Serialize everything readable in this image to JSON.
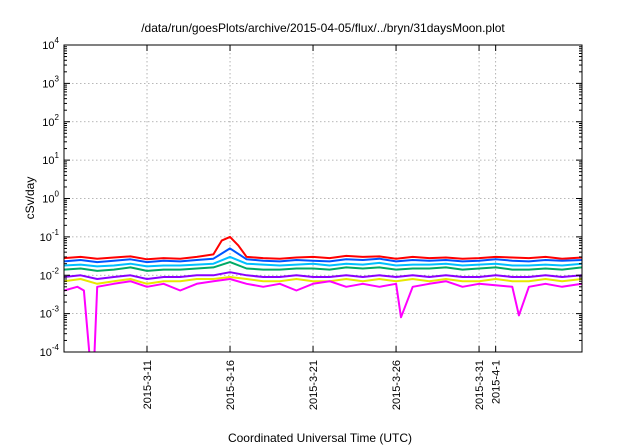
{
  "chart_data": {
    "type": "line",
    "title": "/data/run/goesPlots/archive/2015-04-05/flux/../bryn/31daysMoon.plot",
    "xlabel": "Coordinated Universal Time (UTC)",
    "ylabel": "cSv/day",
    "yscale": "log",
    "ylim": [
      0.0001,
      10000
    ],
    "xlim_days": [
      0,
      31.2
    ],
    "y_ticks": [
      {
        "value": 0.0001,
        "base": "10",
        "exp": "-4"
      },
      {
        "value": 0.001,
        "base": "10",
        "exp": "-3"
      },
      {
        "value": 0.01,
        "base": "10",
        "exp": "-2"
      },
      {
        "value": 0.1,
        "base": "10",
        "exp": "-1"
      },
      {
        "value": 1,
        "base": "10",
        "exp": "0"
      },
      {
        "value": 10,
        "base": "10",
        "exp": "1"
      },
      {
        "value": 100,
        "base": "10",
        "exp": "2"
      },
      {
        "value": 1000,
        "base": "10",
        "exp": "3"
      },
      {
        "value": 10000,
        "base": "10",
        "exp": "4"
      }
    ],
    "x_ticks": [
      {
        "day": 5.0,
        "label": "2015-3-11"
      },
      {
        "day": 10.0,
        "label": "2015-3-16"
      },
      {
        "day": 15.0,
        "label": "2015-3-21"
      },
      {
        "day": 20.0,
        "label": "2015-3-26"
      },
      {
        "day": 25.0,
        "label": "2015-3-31"
      },
      {
        "day": 26.0,
        "label": "2015-4-1"
      }
    ],
    "series": [
      {
        "name": "red",
        "color": "#ff0000",
        "x": [
          0,
          1,
          2,
          3,
          4,
          5,
          6,
          7,
          8,
          9,
          9.5,
          10,
          10.5,
          11,
          12,
          13,
          14,
          15,
          16,
          17,
          18,
          19,
          20,
          21,
          22,
          23,
          24,
          25,
          26,
          27,
          28,
          29,
          30,
          31.2
        ],
        "y": [
          0.028,
          0.03,
          0.027,
          0.029,
          0.031,
          0.026,
          0.028,
          0.027,
          0.03,
          0.035,
          0.08,
          0.1,
          0.06,
          0.03,
          0.028,
          0.027,
          0.029,
          0.03,
          0.028,
          0.032,
          0.03,
          0.031,
          0.027,
          0.03,
          0.028,
          0.029,
          0.027,
          0.028,
          0.03,
          0.029,
          0.028,
          0.03,
          0.027,
          0.029
        ]
      },
      {
        "name": "blue",
        "color": "#0055ff",
        "x": [
          0,
          1,
          2,
          3,
          4,
          5,
          6,
          7,
          8,
          9,
          10,
          11,
          12,
          13,
          14,
          15,
          16,
          17,
          18,
          19,
          20,
          21,
          22,
          23,
          24,
          25,
          26,
          27,
          28,
          29,
          30,
          31.2
        ],
        "y": [
          0.023,
          0.025,
          0.022,
          0.024,
          0.026,
          0.022,
          0.024,
          0.023,
          0.025,
          0.027,
          0.05,
          0.026,
          0.024,
          0.023,
          0.025,
          0.024,
          0.023,
          0.026,
          0.025,
          0.027,
          0.023,
          0.025,
          0.024,
          0.025,
          0.023,
          0.024,
          0.026,
          0.024,
          0.023,
          0.025,
          0.024,
          0.025
        ]
      },
      {
        "name": "cyan",
        "color": "#00bfff",
        "x": [
          0,
          1,
          2,
          3,
          4,
          5,
          6,
          7,
          8,
          9,
          10,
          11,
          12,
          13,
          14,
          15,
          16,
          17,
          18,
          19,
          20,
          21,
          22,
          23,
          24,
          25,
          26,
          27,
          28,
          29,
          30,
          31.2
        ],
        "y": [
          0.018,
          0.019,
          0.017,
          0.018,
          0.02,
          0.017,
          0.018,
          0.018,
          0.019,
          0.02,
          0.03,
          0.02,
          0.019,
          0.018,
          0.019,
          0.02,
          0.018,
          0.02,
          0.019,
          0.021,
          0.018,
          0.019,
          0.019,
          0.02,
          0.018,
          0.019,
          0.02,
          0.018,
          0.018,
          0.019,
          0.018,
          0.02
        ]
      },
      {
        "name": "green",
        "color": "#00aa66",
        "x": [
          0,
          1,
          2,
          3,
          4,
          5,
          6,
          7,
          8,
          9,
          10,
          11,
          12,
          13,
          14,
          15,
          16,
          17,
          18,
          19,
          20,
          21,
          22,
          23,
          24,
          25,
          26,
          27,
          28,
          29,
          30,
          31.2
        ],
        "y": [
          0.014,
          0.015,
          0.013,
          0.014,
          0.016,
          0.013,
          0.014,
          0.014,
          0.015,
          0.016,
          0.022,
          0.015,
          0.014,
          0.014,
          0.015,
          0.015,
          0.014,
          0.016,
          0.015,
          0.016,
          0.014,
          0.015,
          0.015,
          0.016,
          0.014,
          0.015,
          0.016,
          0.014,
          0.014,
          0.015,
          0.014,
          0.016
        ]
      },
      {
        "name": "purple",
        "color": "#8b00ff",
        "x": [
          0,
          1,
          2,
          3,
          4,
          5,
          6,
          7,
          8,
          9,
          10,
          11,
          12,
          13,
          14,
          15,
          16,
          17,
          18,
          19,
          20,
          21,
          22,
          23,
          24,
          25,
          26,
          27,
          28,
          29,
          30,
          31.2
        ],
        "y": [
          0.009,
          0.01,
          0.008,
          0.009,
          0.01,
          0.008,
          0.009,
          0.009,
          0.01,
          0.01,
          0.012,
          0.01,
          0.009,
          0.009,
          0.01,
          0.009,
          0.009,
          0.01,
          0.009,
          0.01,
          0.009,
          0.01,
          0.009,
          0.01,
          0.009,
          0.009,
          0.01,
          0.009,
          0.009,
          0.01,
          0.009,
          0.01
        ]
      },
      {
        "name": "yellow",
        "color": "#e8e800",
        "x": [
          0,
          1,
          2,
          3,
          4,
          5,
          6,
          7,
          8,
          9,
          10,
          11,
          12,
          13,
          14,
          15,
          16,
          17,
          18,
          19,
          20,
          21,
          22,
          23,
          24,
          25,
          26,
          27,
          28,
          29,
          30,
          31.2
        ],
        "y": [
          0.007,
          0.008,
          0.006,
          0.007,
          0.008,
          0.006,
          0.007,
          0.007,
          0.008,
          0.008,
          0.009,
          0.008,
          0.007,
          0.007,
          0.008,
          0.007,
          0.007,
          0.008,
          0.007,
          0.008,
          0.007,
          0.008,
          0.007,
          0.008,
          0.007,
          0.007,
          0.008,
          0.007,
          0.007,
          0.008,
          0.007,
          0.008
        ]
      },
      {
        "name": "magenta",
        "color": "#ff00ff",
        "x": [
          0,
          0.8,
          1.2,
          1.6,
          1.8,
          2,
          3,
          4,
          5,
          6,
          7,
          8,
          9,
          10,
          11,
          12,
          13,
          14,
          15,
          16,
          17,
          18,
          19,
          20,
          20.3,
          21,
          22,
          23,
          24,
          25,
          27,
          27.4,
          28,
          29,
          30,
          31.2
        ],
        "y": [
          0.004,
          0.005,
          0.004,
          4e-05,
          4e-05,
          0.005,
          0.006,
          0.007,
          0.005,
          0.006,
          0.004,
          0.006,
          0.007,
          0.008,
          0.006,
          0.005,
          0.006,
          0.004,
          0.006,
          0.007,
          0.005,
          0.006,
          0.005,
          0.006,
          0.0008,
          0.005,
          0.006,
          0.007,
          0.005,
          0.006,
          0.005,
          0.0009,
          0.005,
          0.006,
          0.005,
          0.006
        ]
      }
    ]
  }
}
